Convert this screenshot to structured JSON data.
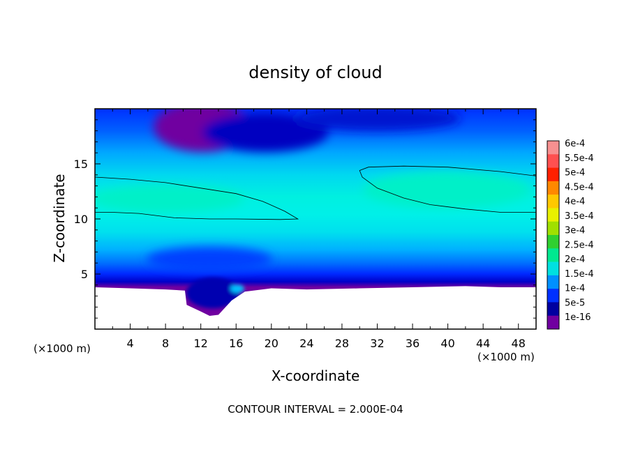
{
  "chart_data": {
    "type": "heatmap",
    "title": "density of cloud",
    "xlabel": "X-coordinate",
    "ylabel": "Z-coordinate",
    "x_unit": "(×1000 m)",
    "y_unit": "(×1000 m)",
    "xlim": [
      0,
      50
    ],
    "ylim": [
      0,
      20
    ],
    "x_ticks": [
      4,
      8,
      12,
      16,
      20,
      24,
      28,
      32,
      36,
      40,
      44,
      48
    ],
    "y_ticks": [
      5,
      10,
      15
    ],
    "footer": "CONTOUR INTERVAL = 2.000E-04",
    "colorbar": {
      "labels": [
        "6e-4",
        "5.5e-4",
        "5e-4",
        "4.5e-4",
        "4e-4",
        "3.5e-4",
        "3e-4",
        "2.5e-4",
        "2e-4",
        "1.5e-4",
        "1e-4",
        "5e-5",
        "1e-16"
      ],
      "colors": [
        "#f89090",
        "#ff5050",
        "#ff2000",
        "#ff8800",
        "#ffc800",
        "#e8f000",
        "#a0e000",
        "#30d030",
        "#00e890",
        "#00e0e0",
        "#0090ff",
        "#0030ff",
        "#0000a0",
        "#7000a0"
      ]
    },
    "contours": [
      {
        "level": 0.0002,
        "points": [
          [
            0,
            13.8
          ],
          [
            4,
            13.6
          ],
          [
            8,
            13.3
          ],
          [
            12,
            12.8
          ],
          [
            16,
            12.3
          ],
          [
            19,
            11.6
          ],
          [
            21.5,
            10.7
          ],
          [
            23,
            10.0
          ],
          [
            21,
            9.95
          ],
          [
            16,
            10.0
          ],
          [
            13,
            10.0
          ],
          [
            9,
            10.1
          ],
          [
            5,
            10.5
          ],
          [
            2,
            10.6
          ],
          [
            0,
            10.6
          ]
        ]
      },
      {
        "level": 0.0002,
        "points": [
          [
            50,
            13.9
          ],
          [
            46,
            14.3
          ],
          [
            40,
            14.7
          ],
          [
            35,
            14.8
          ],
          [
            31,
            14.7
          ],
          [
            30,
            14.4
          ],
          [
            30.3,
            13.8
          ],
          [
            32,
            12.8
          ],
          [
            35,
            11.9
          ],
          [
            38,
            11.3
          ],
          [
            42,
            10.9
          ],
          [
            46,
            10.6
          ],
          [
            50,
            10.6
          ]
        ]
      }
    ],
    "cloud_base": [
      [
        0,
        3.8
      ],
      [
        4,
        3.7
      ],
      [
        8,
        3.6
      ],
      [
        10.2,
        3.5
      ],
      [
        10.4,
        2.2
      ],
      [
        12,
        1.6
      ],
      [
        13,
        1.2
      ],
      [
        14,
        1.3
      ],
      [
        15.5,
        2.6
      ],
      [
        17,
        3.4
      ],
      [
        20,
        3.7
      ],
      [
        24,
        3.6
      ],
      [
        30,
        3.7
      ],
      [
        36,
        3.8
      ],
      [
        42,
        3.9
      ],
      [
        46,
        3.8
      ],
      [
        50,
        3.8
      ]
    ]
  }
}
